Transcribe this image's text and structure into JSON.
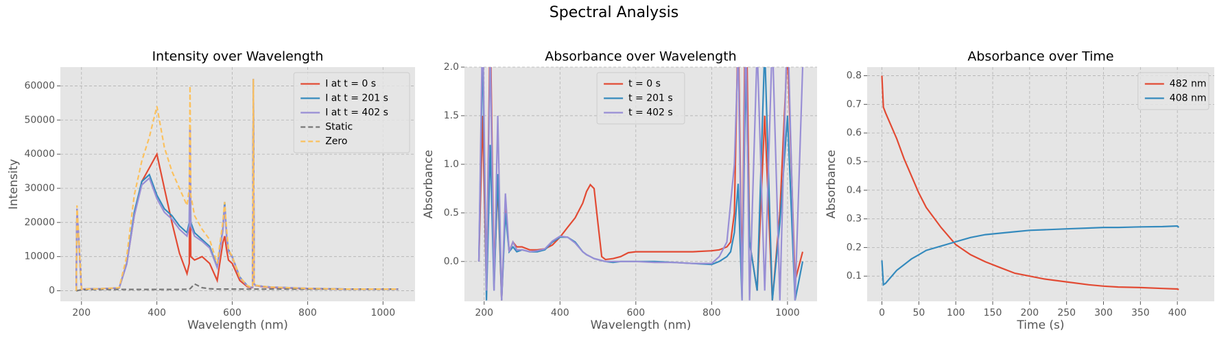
{
  "title": "Spectral Analysis",
  "chart_data": [
    {
      "type": "line",
      "title": "Intensity over Wavelength",
      "xlabel": "Wavelength (nm)",
      "ylabel": "Intensity",
      "xlim": [
        144,
        1085
      ],
      "ylim": [
        -3100,
        65500
      ],
      "xticks": [
        200,
        400,
        600,
        800,
        1000
      ],
      "yticks": [
        0,
        10000,
        20000,
        30000,
        40000,
        50000,
        60000
      ],
      "grid": true,
      "legend": "upper right",
      "x": [
        186,
        188,
        200,
        250,
        300,
        320,
        340,
        360,
        380,
        400,
        420,
        440,
        460,
        480,
        486,
        488,
        490,
        500,
        520,
        540,
        560,
        575,
        580,
        585,
        590,
        600,
        620,
        640,
        650,
        654,
        656,
        658,
        662,
        680,
        700,
        750,
        800,
        900,
        1000,
        1040
      ],
      "series": [
        {
          "name": "I at t = 0 s",
          "color": "#E24A33",
          "linestyle": "solid",
          "values": [
            0,
            24000,
            500,
            600,
            800,
            8000,
            22000,
            32000,
            36000,
            40000,
            30000,
            20000,
            11000,
            5000,
            8000,
            48000,
            10000,
            9000,
            10000,
            8000,
            3000,
            14000,
            16000,
            12000,
            9000,
            8000,
            3000,
            1200,
            900,
            1000,
            62000,
            2000,
            1500,
            1200,
            1000,
            800,
            600,
            500,
            500,
            500
          ]
        },
        {
          "name": "I at t = 201 s",
          "color": "#348ABD",
          "linestyle": "solid",
          "values": [
            0,
            24000,
            500,
            600,
            800,
            8000,
            23000,
            32000,
            34000,
            28000,
            24000,
            22000,
            19000,
            17000,
            20000,
            48000,
            20000,
            17000,
            15000,
            13000,
            7000,
            18000,
            26000,
            16000,
            12000,
            10000,
            4000,
            1500,
            1000,
            1100,
            62000,
            2000,
            1600,
            1300,
            1100,
            900,
            700,
            500,
            500,
            500
          ]
        },
        {
          "name": "I at t = 402 s",
          "color": "#988ED5",
          "linestyle": "solid",
          "values": [
            0,
            24000,
            500,
            600,
            800,
            7800,
            22000,
            31000,
            33000,
            27000,
            23000,
            21000,
            18000,
            16000,
            19000,
            48000,
            19000,
            16000,
            14500,
            12500,
            6800,
            17500,
            25000,
            15500,
            11500,
            9800,
            3800,
            1400,
            1000,
            1100,
            62000,
            2000,
            1500,
            1300,
            1100,
            900,
            700,
            500,
            500,
            500
          ]
        },
        {
          "name": "Static",
          "color": "#777777",
          "linestyle": "dashed",
          "values": [
            0,
            0,
            300,
            400,
            400,
            400,
            400,
            400,
            400,
            400,
            400,
            400,
            400,
            450,
            500,
            600,
            800,
            2000,
            900,
            600,
            500,
            500,
            500,
            500,
            500,
            500,
            500,
            500,
            500,
            500,
            500,
            500,
            500,
            500,
            500,
            500,
            500,
            500,
            500,
            500
          ]
        },
        {
          "name": "Zero",
          "color": "#FBC15E",
          "linestyle": "dashed",
          "values": [
            0,
            25000,
            500,
            600,
            900,
            10000,
            28000,
            38000,
            45000,
            54000,
            42000,
            35000,
            30000,
            25000,
            30000,
            60000,
            28000,
            22000,
            18000,
            15000,
            8000,
            20000,
            26000,
            18000,
            12000,
            10000,
            4000,
            1500,
            1000,
            1100,
            62000,
            2000,
            1600,
            1300,
            1100,
            900,
            700,
            500,
            500,
            500
          ]
        }
      ]
    },
    {
      "type": "line",
      "title": "Absorbance over Wavelength",
      "xlabel": "Wavelength (nm)",
      "ylabel": "Absorbance",
      "xlim": [
        148,
        1078
      ],
      "ylim": [
        -0.41,
        2.0
      ],
      "xticks": [
        200,
        400,
        600,
        800,
        1000
      ],
      "yticks": [
        {
          "value": 0,
          "label": "0.0"
        },
        0.5,
        {
          "value": 1,
          "label": "1.0"
        },
        1.5,
        {
          "value": 2,
          "label": "2.0"
        }
      ],
      "grid": true,
      "legend": "upper center",
      "x": [
        186,
        196,
        206,
        216,
        226,
        236,
        246,
        256,
        266,
        276,
        286,
        300,
        320,
        340,
        360,
        380,
        400,
        420,
        440,
        460,
        470,
        480,
        490,
        500,
        510,
        520,
        540,
        560,
        580,
        600,
        650,
        700,
        750,
        800,
        820,
        840,
        850,
        860,
        870,
        880,
        890,
        900,
        920,
        940,
        960,
        980,
        1000,
        1020,
        1040
      ],
      "series": [
        {
          "name": "t = 0 s",
          "color": "#E24A33",
          "linestyle": "solid",
          "values": [
            0.0,
            1.5,
            -0.3,
            2.5,
            -0.2,
            0.8,
            -0.4,
            0.6,
            0.1,
            0.2,
            0.15,
            0.15,
            0.12,
            0.12,
            0.13,
            0.17,
            0.25,
            0.35,
            0.45,
            0.6,
            0.72,
            0.79,
            0.75,
            0.4,
            0.05,
            0.02,
            0.03,
            0.05,
            0.09,
            0.1,
            0.1,
            0.1,
            0.1,
            0.11,
            0.12,
            0.15,
            0.2,
            0.5,
            2.5,
            -0.3,
            3,
            0.2,
            -0.3,
            1.5,
            -0.4,
            0.5,
            2.2,
            -0.2,
            0.1
          ]
        },
        {
          "name": "t = 201 s",
          "color": "#348ABD",
          "linestyle": "solid",
          "values": [
            0.0,
            2.2,
            -0.4,
            1.2,
            -0.3,
            0.9,
            -0.4,
            0.5,
            0.1,
            0.15,
            0.1,
            0.12,
            0.1,
            0.1,
            0.12,
            0.2,
            0.25,
            0.25,
            0.2,
            0.1,
            0.07,
            0.05,
            0.03,
            0.02,
            0.01,
            0.0,
            -0.01,
            0.0,
            0.0,
            0.0,
            0.0,
            -0.01,
            -0.02,
            -0.03,
            0.0,
            0.05,
            0.1,
            0.3,
            0.8,
            -0.4,
            2.0,
            0.2,
            -0.3,
            2.2,
            -0.4,
            0.4,
            1.5,
            -0.4,
            0.0
          ]
        },
        {
          "name": "t = 402 s",
          "color": "#988ED5",
          "linestyle": "solid",
          "values": [
            0.0,
            2.5,
            -0.3,
            2.2,
            -0.3,
            1.5,
            -0.4,
            0.7,
            0.1,
            0.2,
            0.12,
            0.12,
            0.1,
            0.11,
            0.13,
            0.21,
            0.26,
            0.25,
            0.19,
            0.1,
            0.07,
            0.05,
            0.03,
            0.02,
            0.01,
            0.0,
            0.0,
            0.0,
            0.0,
            0.0,
            -0.01,
            -0.01,
            -0.02,
            -0.02,
            0.05,
            0.2,
            0.6,
            1.0,
            2.2,
            -0.4,
            2.5,
            -0.4,
            2.2,
            -0.3,
            2.3,
            -0.4,
            2.5,
            -0.4,
            2.0
          ]
        }
      ]
    },
    {
      "type": "line",
      "title": "Absorbance over Time",
      "xlabel": "Time (s)",
      "ylabel": "Absorbance",
      "xlim": [
        -20,
        450
      ],
      "ylim": [
        0.012,
        0.83
      ],
      "xticks": [
        0,
        50,
        100,
        150,
        200,
        250,
        300,
        350,
        400
      ],
      "yticks": [
        0.1,
        0.2,
        0.3,
        0.4,
        0.5,
        0.6,
        0.7,
        0.8
      ],
      "grid": true,
      "legend": "upper right",
      "x": [
        0,
        2,
        5,
        10,
        20,
        30,
        40,
        50,
        60,
        80,
        100,
        120,
        140,
        160,
        180,
        200,
        220,
        250,
        280,
        300,
        320,
        350,
        380,
        400,
        402
      ],
      "series": [
        {
          "name": "482 nm",
          "color": "#E24A33",
          "linestyle": "solid",
          "values": [
            0.8,
            0.69,
            0.67,
            0.64,
            0.58,
            0.51,
            0.45,
            0.39,
            0.34,
            0.27,
            0.21,
            0.175,
            0.15,
            0.13,
            0.11,
            0.1,
            0.09,
            0.08,
            0.07,
            0.065,
            0.062,
            0.06,
            0.057,
            0.055,
            0.053
          ]
        },
        {
          "name": "408 nm",
          "color": "#348ABD",
          "linestyle": "solid",
          "values": [
            0.155,
            0.07,
            0.075,
            0.09,
            0.12,
            0.14,
            0.16,
            0.175,
            0.19,
            0.205,
            0.22,
            0.235,
            0.245,
            0.25,
            0.255,
            0.26,
            0.262,
            0.265,
            0.268,
            0.27,
            0.27,
            0.272,
            0.273,
            0.275,
            0.27
          ]
        }
      ]
    }
  ]
}
